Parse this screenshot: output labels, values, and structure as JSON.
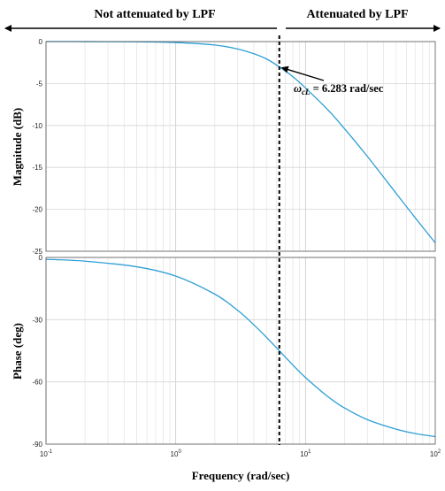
{
  "chart_data": {
    "type": "line",
    "regions": {
      "left_label": "Not attenuated by LPF",
      "right_label": "Attenuated by LPF"
    },
    "xlabel": "Frequency (rad/sec)",
    "x_scale": "log",
    "xlim": [
      0.1,
      100
    ],
    "x_ticks": [
      {
        "base": "10",
        "exp": "-1"
      },
      {
        "base": "10",
        "exp": "0"
      },
      {
        "base": "10",
        "exp": "1"
      },
      {
        "base": "10",
        "exp": "2"
      }
    ],
    "cutoff_frequency": 6.283,
    "annotation": {
      "symbol": "ω",
      "subscript": "cL",
      "text": " = 6.283 rad/sec"
    },
    "line_color": "#2e9fd6",
    "grid": true,
    "panels": [
      {
        "name": "magnitude",
        "ylabel": "Magnitude (dB)",
        "ylim": [
          -25,
          0
        ],
        "y_ticks": [
          0,
          -5,
          -10,
          -15,
          -20,
          -25
        ],
        "series": {
          "x": [
            0.1,
            0.2,
            0.5,
            1,
            2,
            3,
            4,
            5,
            6.283,
            8,
            10,
            15,
            20,
            30,
            50,
            70,
            100
          ],
          "y": [
            0.0,
            -0.004,
            -0.03,
            -0.11,
            -0.41,
            -0.88,
            -1.45,
            -2.07,
            -3.01,
            -4.19,
            -5.53,
            -8.2,
            -10.4,
            -13.7,
            -18.1,
            -21.0,
            -24.0
          ]
        }
      },
      {
        "name": "phase",
        "ylabel": "Phase (deg)",
        "ylim": [
          -90,
          0
        ],
        "y_ticks": [
          0,
          -30,
          -60,
          -90
        ],
        "series": {
          "x": [
            0.1,
            0.2,
            0.5,
            1,
            2,
            3,
            4,
            5,
            6.283,
            8,
            10,
            15,
            20,
            30,
            50,
            70,
            100
          ],
          "y": [
            -0.9,
            -1.8,
            -4.5,
            -9.0,
            -17.7,
            -25.5,
            -32.5,
            -38.5,
            -45.0,
            -51.9,
            -57.9,
            -67.3,
            -72.6,
            -78.2,
            -82.8,
            -84.9,
            -86.4
          ]
        }
      }
    ]
  }
}
